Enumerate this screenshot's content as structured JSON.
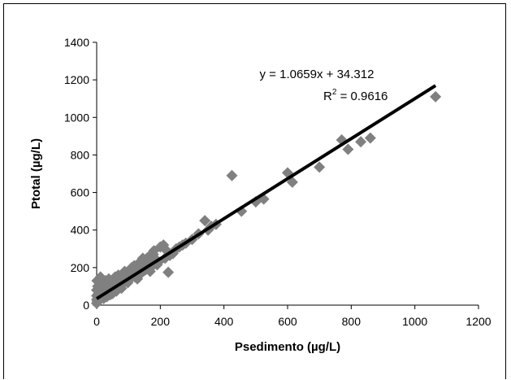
{
  "chart_data": {
    "type": "scatter",
    "title": "",
    "xlabel": "Psedimento (µg/L)",
    "ylabel": "Ptotal (µg/L)",
    "xlim": [
      0,
      1200
    ],
    "ylim": [
      0,
      1400
    ],
    "xticks": [
      0,
      200,
      400,
      600,
      800,
      1000,
      1200
    ],
    "yticks": [
      0,
      200,
      400,
      600,
      800,
      1000,
      1200,
      1400
    ],
    "grid": false,
    "legend": "none",
    "marker": "diamond",
    "marker_color": "#808080",
    "trendline": {
      "slope": 1.0659,
      "intercept": 34.312,
      "x_range": [
        0,
        1065
      ],
      "color": "#000000",
      "equation_label": "y = 1.0659x + 34.312",
      "r2_prefix": "R",
      "r2_suffix": " = 0.9616"
    },
    "points": [
      [
        1065,
        1110
      ],
      [
        860,
        890
      ],
      [
        830,
        870
      ],
      [
        790,
        830
      ],
      [
        770,
        880
      ],
      [
        700,
        735
      ],
      [
        615,
        655
      ],
      [
        600,
        705
      ],
      [
        525,
        565
      ],
      [
        500,
        550
      ],
      [
        455,
        500
      ],
      [
        425,
        690
      ],
      [
        375,
        430
      ],
      [
        360,
        420
      ],
      [
        350,
        400
      ],
      [
        340,
        450
      ],
      [
        320,
        380
      ],
      [
        300,
        350
      ],
      [
        280,
        330
      ],
      [
        270,
        320
      ],
      [
        260,
        310
      ],
      [
        250,
        300
      ],
      [
        240,
        275
      ],
      [
        230,
        265
      ],
      [
        225,
        175
      ],
      [
        220,
        290
      ],
      [
        215,
        250
      ],
      [
        210,
        320
      ],
      [
        200,
        310
      ],
      [
        195,
        230
      ],
      [
        190,
        215
      ],
      [
        180,
        290
      ],
      [
        175,
        220
      ],
      [
        170,
        200
      ],
      [
        165,
        260
      ],
      [
        160,
        230
      ],
      [
        155,
        190
      ],
      [
        150,
        185
      ],
      [
        145,
        250
      ],
      [
        140,
        170
      ],
      [
        135,
        200
      ],
      [
        130,
        220
      ],
      [
        125,
        160
      ],
      [
        120,
        150
      ],
      [
        115,
        180
      ],
      [
        110,
        200
      ],
      [
        105,
        140
      ],
      [
        100,
        170
      ],
      [
        95,
        130
      ],
      [
        90,
        160
      ],
      [
        85,
        120
      ],
      [
        80,
        150
      ],
      [
        75,
        110
      ],
      [
        70,
        100
      ],
      [
        65,
        130
      ],
      [
        60,
        90
      ],
      [
        55,
        120
      ],
      [
        50,
        80
      ],
      [
        45,
        110
      ],
      [
        40,
        70
      ],
      [
        35,
        100
      ],
      [
        30,
        60
      ],
      [
        25,
        90
      ],
      [
        20,
        50
      ],
      [
        15,
        80
      ],
      [
        10,
        40
      ],
      [
        8,
        120
      ],
      [
        5,
        60
      ],
      [
        3,
        100
      ],
      [
        2,
        20
      ],
      [
        0,
        10
      ],
      [
        0,
        30
      ],
      [
        0,
        50
      ],
      [
        0,
        80
      ],
      [
        1,
        130
      ],
      [
        12,
        150
      ],
      [
        18,
        110
      ],
      [
        28,
        130
      ],
      [
        38,
        140
      ],
      [
        48,
        60
      ],
      [
        58,
        150
      ],
      [
        68,
        160
      ],
      [
        78,
        90
      ],
      [
        88,
        180
      ],
      [
        98,
        120
      ],
      [
        108,
        190
      ],
      [
        118,
        210
      ],
      [
        128,
        140
      ],
      [
        138,
        230
      ],
      [
        148,
        210
      ],
      [
        158,
        250
      ],
      [
        168,
        180
      ],
      [
        178,
        270
      ],
      [
        188,
        240
      ],
      [
        6,
        25
      ],
      [
        22,
        35
      ],
      [
        32,
        45
      ],
      [
        42,
        55
      ],
      [
        52,
        65
      ],
      [
        62,
        75
      ]
    ]
  }
}
